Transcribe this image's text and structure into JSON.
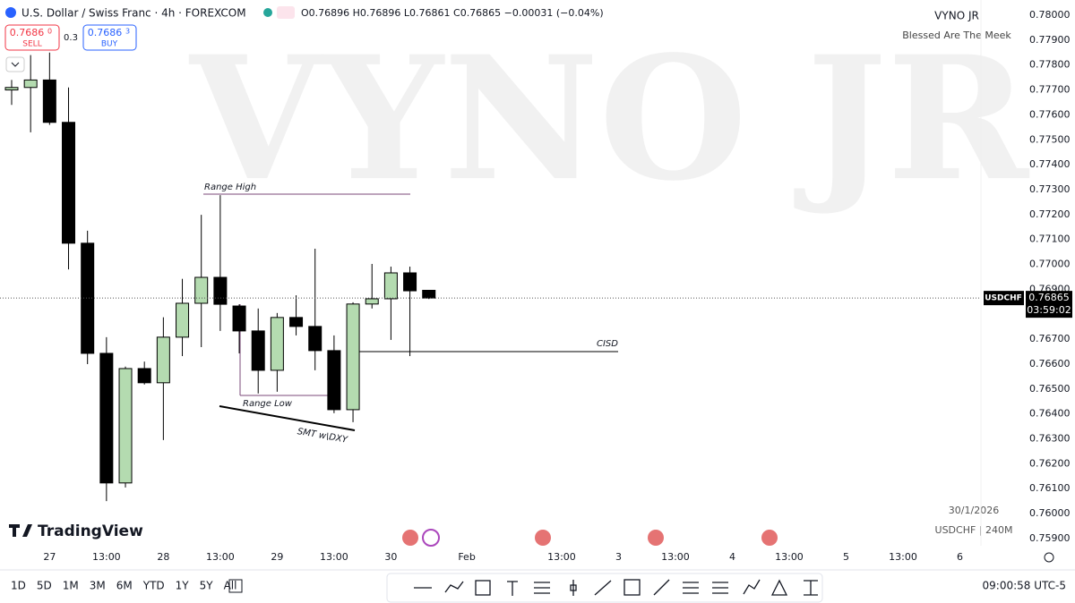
{
  "chart_data": {
    "type": "candlestick",
    "title": "U.S. Dollar / Swiss Franc · 4h · FOREXCOM",
    "ohlc_text": "O0.76896 H0.76896 L0.76861 C0.76865 −0.00031 (−0.04%)",
    "sell": {
      "price": "0.7686",
      "pip": "0",
      "label": "SELL"
    },
    "spread": "0.3",
    "buy": {
      "price": "0.7686",
      "pip": "3",
      "label": "BUY"
    },
    "watermark": "VYNO JR",
    "author": "VYNO JR",
    "tagline": "Blessed Are The Meek",
    "date_stamp": "30/1/2026",
    "symbol_stamp": "USDCHF | 240M",
    "logo": "TradingView",
    "annotations": [
      "Range High",
      "Range Low",
      "SMT w\\DXY",
      "CISD"
    ],
    "price_tag": {
      "symbol": "USDCHF",
      "price": "0.76865",
      "countdown": "03:59:02"
    },
    "ranges": [
      "1D",
      "5D",
      "1M",
      "3M",
      "6M",
      "YTD",
      "1Y",
      "5Y",
      "All"
    ],
    "clock": "09:00:58 UTC-5",
    "up_color": "#b4dbb0",
    "down_color": "#000000",
    "grid": false,
    "categories": [
      null,
      null,
      "27",
      null,
      null,
      "13:00",
      null,
      null,
      "28",
      null,
      null,
      "13:00",
      null,
      null,
      "29",
      null,
      null,
      "13:00",
      null,
      null,
      "30",
      null,
      null,
      null,
      "Feb",
      null,
      null,
      null,
      null,
      "13:00",
      null,
      null,
      "3",
      null,
      null,
      "13:00",
      null,
      null,
      "4",
      null,
      null,
      "13:00",
      null,
      null,
      "5",
      null,
      null,
      "13:00",
      null,
      null,
      "6"
    ],
    "open": [
      0.777,
      0.7771,
      0.7774,
      0.7757,
      0.77085,
      0.76643,
      0.76123,
      0.76582,
      0.76525,
      0.76708,
      0.76844,
      0.76948,
      0.76833,
      0.76733,
      0.76575,
      0.76787,
      0.76751,
      0.76654,
      0.76417,
      0.76841,
      0.76862,
      0.76966,
      0.76896,
      null,
      null,
      null,
      null,
      null,
      null,
      null,
      null,
      null,
      null,
      null,
      null,
      null,
      null,
      null,
      null,
      null,
      null,
      null,
      null,
      null,
      null,
      null,
      null,
      null,
      null,
      null,
      null
    ],
    "high": [
      0.7774,
      0.7784,
      0.7785,
      0.7771,
      0.77135,
      0.76708,
      0.7659,
      0.7661,
      0.76788,
      0.76942,
      0.77199,
      0.77278,
      0.7684,
      0.76823,
      0.76805,
      0.76876,
      0.77063,
      0.76715,
      0.76848,
      0.77002,
      0.76991,
      0.76991,
      0.76896,
      null,
      null,
      null,
      null,
      null,
      null,
      null,
      null,
      null,
      null,
      null,
      null,
      null,
      null,
      null,
      null,
      null,
      null,
      null,
      null,
      null,
      null,
      null,
      null,
      null,
      null,
      null,
      null
    ],
    "low": [
      0.7764,
      0.7753,
      0.7756,
      0.7698,
      0.766,
      0.7605,
      0.76105,
      0.76518,
      0.76295,
      0.76632,
      0.76668,
      0.76733,
      0.76643,
      0.76482,
      0.76489,
      0.76715,
      0.76575,
      0.76403,
      0.76367,
      0.76823,
      0.76697,
      0.76632,
      0.76861,
      null,
      null,
      null,
      null,
      null,
      null,
      null,
      null,
      null,
      null,
      null,
      null,
      null,
      null,
      null,
      null,
      null,
      null,
      null,
      null,
      null,
      null,
      null,
      null,
      null,
      null,
      null,
      null
    ],
    "close": [
      0.7771,
      0.7774,
      0.7757,
      0.77085,
      0.76643,
      0.76123,
      0.76582,
      0.76525,
      0.76708,
      0.76844,
      0.76948,
      0.7684,
      0.76733,
      0.76575,
      0.76787,
      0.76751,
      0.76654,
      0.76417,
      0.76841,
      0.76862,
      0.76966,
      0.76894,
      0.76865,
      null,
      null,
      null,
      null,
      null,
      null,
      null,
      null,
      null,
      null,
      null,
      null,
      null,
      null,
      null,
      null,
      null,
      null,
      null,
      null,
      null,
      null,
      null,
      null,
      null,
      null,
      null,
      null
    ],
    "ylim": [
      0.75871,
      0.78061
    ],
    "yticks": [
      {
        "value": 0.78,
        "label": "0.78000"
      },
      {
        "value": 0.779,
        "label": "0.77900"
      },
      {
        "value": 0.778,
        "label": "0.77800"
      },
      {
        "value": 0.777,
        "label": "0.77700"
      },
      {
        "value": 0.776,
        "label": "0.77600"
      },
      {
        "value": 0.775,
        "label": "0.77500"
      },
      {
        "value": 0.774,
        "label": "0.77400"
      },
      {
        "value": 0.773,
        "label": "0.77300"
      },
      {
        "value": 0.772,
        "label": "0.77200"
      },
      {
        "value": 0.771,
        "label": "0.77100"
      },
      {
        "value": 0.77,
        "label": "0.77000"
      },
      {
        "value": 0.769,
        "label": "0.76900"
      },
      {
        "value": 0.768,
        "label": "0.76800"
      },
      {
        "value": 0.767,
        "label": "0.76700"
      },
      {
        "value": 0.766,
        "label": "0.76600"
      },
      {
        "value": 0.765,
        "label": "0.76500"
      },
      {
        "value": 0.764,
        "label": "0.76400"
      },
      {
        "value": 0.763,
        "label": "0.76300"
      },
      {
        "value": 0.762,
        "label": "0.76200"
      },
      {
        "value": 0.761,
        "label": "0.76100"
      },
      {
        "value": 0.76,
        "label": "0.76000"
      },
      {
        "value": 0.759,
        "label": "0.75900"
      }
    ]
  }
}
